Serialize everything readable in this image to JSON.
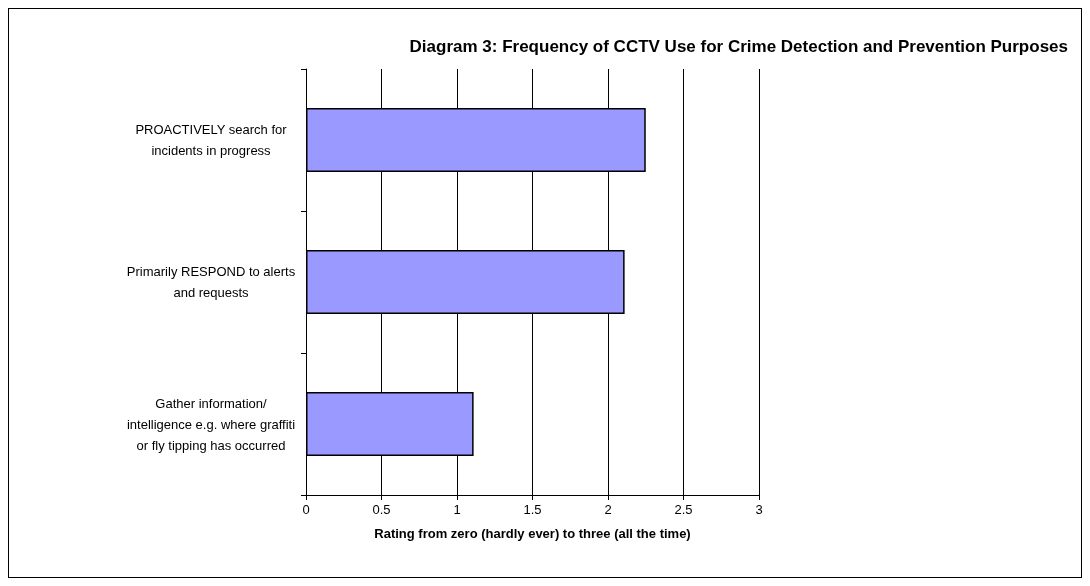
{
  "chart_data": {
    "type": "bar",
    "orientation": "horizontal",
    "title": "Diagram 3: Frequency of CCTV Use for Crime Detection and Prevention Purposes",
    "xlabel": "Rating from zero (hardly ever) to three (all the time)",
    "categories": [
      "PROACTIVELY search for\nincidents in progress",
      "Primarily RESPOND to alerts\nand requests",
      "Gather information/\nintelligence e.g. where graffiti\nor fly tipping has occurred"
    ],
    "values": [
      2.25,
      2.11,
      1.11
    ],
    "color": "#9999ff",
    "xlim": [
      0,
      3
    ],
    "xticks": [
      0,
      0.5,
      1,
      1.5,
      2,
      2.5,
      3
    ],
    "grid": "x"
  }
}
